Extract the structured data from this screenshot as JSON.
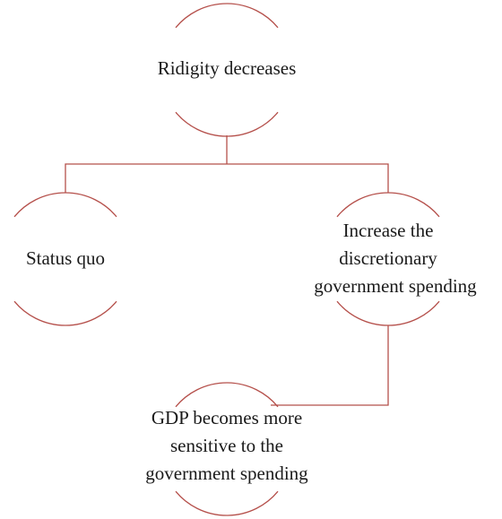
{
  "nodes": [
    {
      "lines": [
        "Ridigity decreases"
      ]
    },
    {
      "lines": [
        "Status quo"
      ]
    },
    {
      "lines": [
        "Increase the",
        "discretionary",
        "government spending"
      ]
    },
    {
      "lines": [
        "GDP becomes more",
        "sensitive to the",
        "government spending"
      ]
    }
  ]
}
